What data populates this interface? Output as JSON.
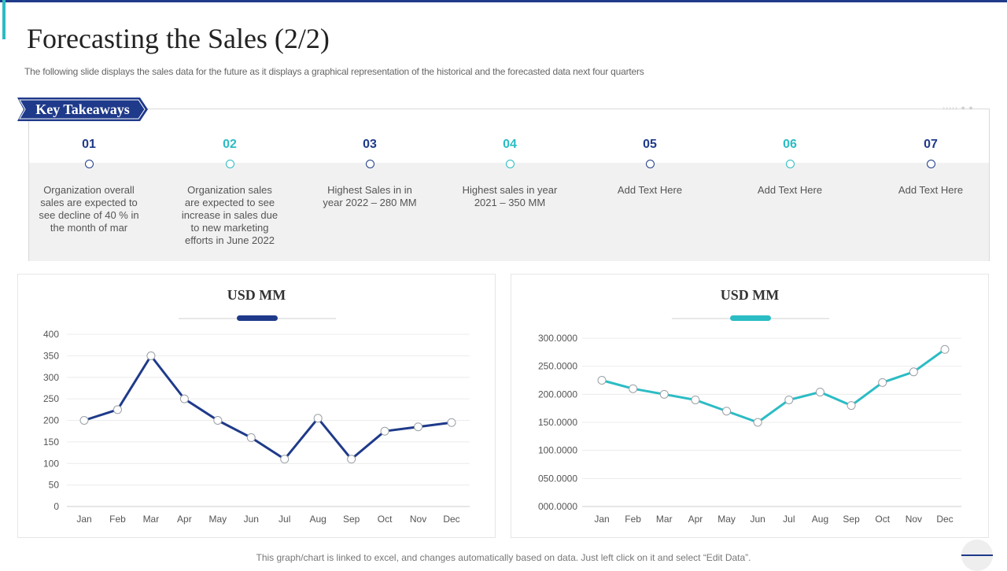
{
  "title": "Forecasting the Sales (2/2)",
  "subtitle": "The following slide displays the sales data for the future as it displays a graphical representation of the historical and the forecasted data next four quarters",
  "key_takeaways_label": "Key Takeaways",
  "takeaways": [
    {
      "num": "01",
      "text": "Organization overall sales are expected to see decline of 40 % in the month of mar",
      "color": "#1f3a8a"
    },
    {
      "num": "02",
      "text": "Organization sales are expected to see increase in sales due to new marketing efforts in June 2022",
      "color": "#2bbcc4"
    },
    {
      "num": "03",
      "text": "Highest Sales in in year 2022 – 280 MM",
      "color": "#1f3a8a"
    },
    {
      "num": "04",
      "text": "Highest sales in year 2021 – 350 MM",
      "color": "#2bbcc4"
    },
    {
      "num": "05",
      "text": "Add Text Here",
      "color": "#1f3a8a"
    },
    {
      "num": "06",
      "text": "Add Text Here",
      "color": "#2bbcc4"
    },
    {
      "num": "07",
      "text": "Add Text Here",
      "color": "#1f3a8a"
    }
  ],
  "footer_note": "This graph/chart is linked to excel, and changes automatically based on data. Just left click on it and select “Edit Data”.",
  "colors": {
    "navy": "#1f3a8a",
    "teal": "#2bbcc4"
  },
  "chart_data": [
    {
      "type": "line",
      "title": "USD MM",
      "categories": [
        "Jan",
        "Feb",
        "Mar",
        "Apr",
        "May",
        "Jun",
        "Jul",
        "Aug",
        "Sep",
        "Oct",
        "Nov",
        "Dec"
      ],
      "values": [
        200,
        225,
        350,
        250,
        200,
        160,
        110,
        205,
        110,
        175,
        185,
        195
      ],
      "ylim": [
        0,
        400
      ],
      "yticks": [
        "0",
        "50",
        "100",
        "150",
        "200",
        "250",
        "300",
        "350",
        "400"
      ],
      "xlabel": "",
      "ylabel": "",
      "color": "#1f3a8a"
    },
    {
      "type": "line",
      "title": "USD MM",
      "categories": [
        "Jan",
        "Feb",
        "Mar",
        "Apr",
        "May",
        "Jun",
        "Jul",
        "Aug",
        "Sep",
        "Oct",
        "Nov",
        "Dec"
      ],
      "values": [
        225,
        210,
        200,
        190,
        170,
        150,
        190,
        204,
        180,
        221,
        240,
        280
      ],
      "ylim": [
        0,
        300
      ],
      "yticks": [
        "000.0000",
        "050.0000",
        "100.0000",
        "150.0000",
        "200.0000",
        "250.0000",
        "300.0000"
      ],
      "xlabel": "",
      "ylabel": "",
      "color": "#2bbcc4"
    }
  ]
}
